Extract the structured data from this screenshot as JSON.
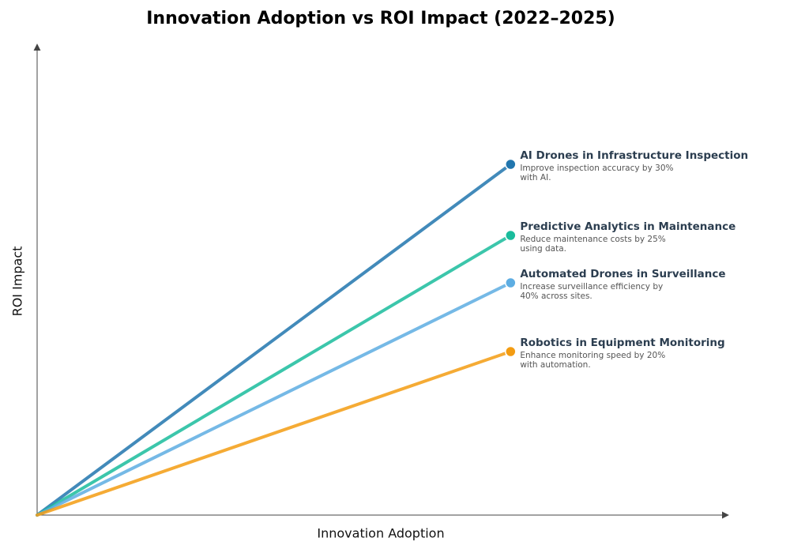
{
  "chart_data": {
    "type": "line",
    "title": "Innovation Adoption vs ROI Impact (2022–2025)",
    "x_label": "Innovation Adoption",
    "y_label": "ROI Impact",
    "x": [
      0,
      1
    ],
    "xlim": [
      0,
      1.46
    ],
    "ylim": [
      0,
      0.99
    ],
    "series": [
      {
        "name": "AI Drones in Infrastructure Inspection",
        "color": "#2176ae",
        "values": [
          0,
          0.74
        ],
        "annotation": [
          "Improve inspection accuracy by 30%",
          "with AI."
        ]
      },
      {
        "name": "Predictive Analytics in Maintenance",
        "color": "#1abc9c",
        "values": [
          0,
          0.59
        ],
        "annotation": [
          "Reduce maintenance costs by 25%",
          "using data."
        ]
      },
      {
        "name": "Automated Drones in Surveillance",
        "color": "#5dade2",
        "values": [
          0,
          0.49
        ],
        "annotation": [
          "Increase surveillance efficiency by",
          "40% across sites."
        ]
      },
      {
        "name": "Robotics in Equipment Monitoring",
        "color": "#f39c12",
        "values": [
          0,
          0.345
        ],
        "annotation": [
          "Enhance monitoring speed by 20%",
          "with automation."
        ]
      }
    ]
  }
}
